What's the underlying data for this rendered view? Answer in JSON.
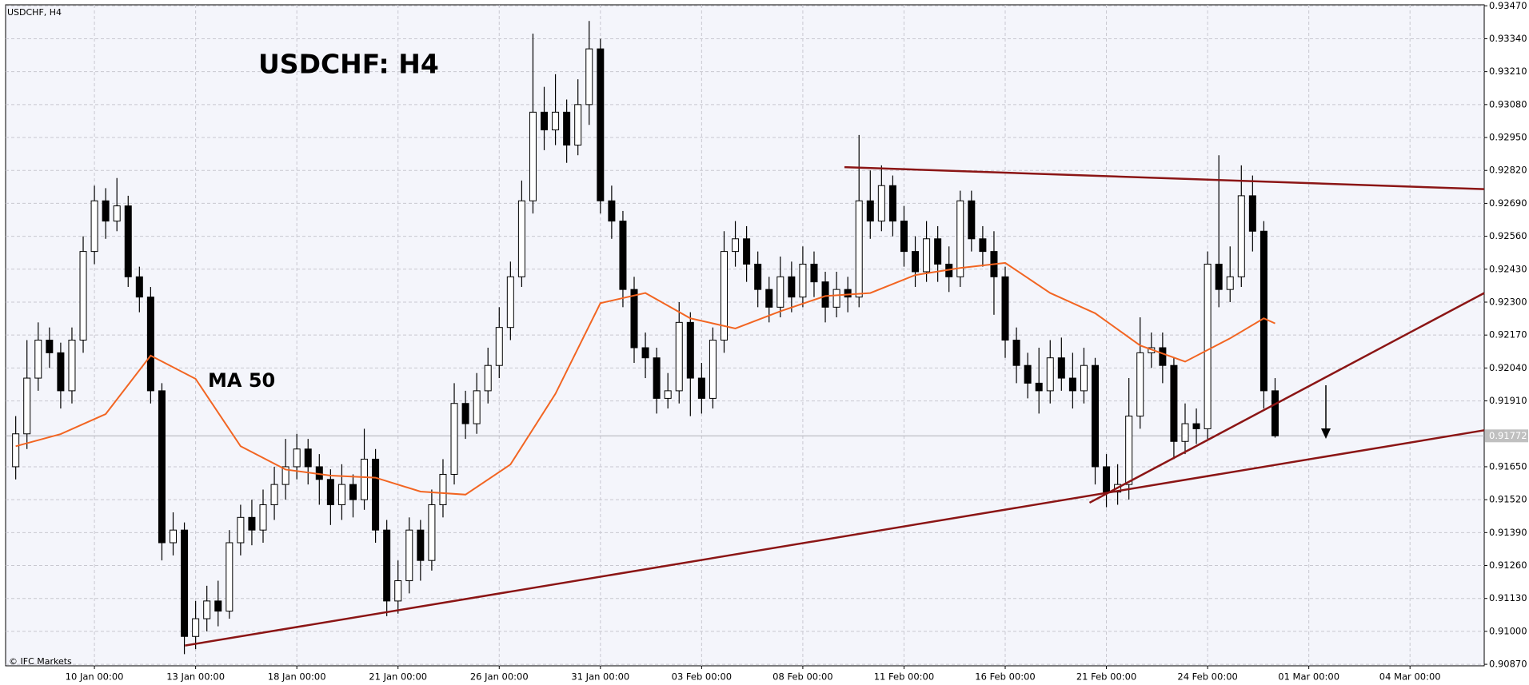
{
  "chart_data": {
    "type": "candlestick",
    "symbol_label": "USDCHF, H4",
    "title": "USDCHF: H4",
    "watermark": "© IFC Markets",
    "ylim": [
      0.90864,
      0.93474
    ],
    "yticks": [
      {
        "value": 0.9087,
        "label": "0.90870"
      },
      {
        "value": 0.91,
        "label": "0.91000"
      },
      {
        "value": 0.9113,
        "label": "0.91130"
      },
      {
        "value": 0.9126,
        "label": "0.91260"
      },
      {
        "value": 0.9139,
        "label": "0.91390"
      },
      {
        "value": 0.9152,
        "label": "0.91520"
      },
      {
        "value": 0.9165,
        "label": "0.91650"
      },
      {
        "value": 0.9191,
        "label": "0.91910"
      },
      {
        "value": 0.9204,
        "label": "0.92040"
      },
      {
        "value": 0.9217,
        "label": "0.92170"
      },
      {
        "value": 0.923,
        "label": "0.92300"
      },
      {
        "value": 0.9243,
        "label": "0.92430"
      },
      {
        "value": 0.9256,
        "label": "0.92560"
      },
      {
        "value": 0.9269,
        "label": "0.92690"
      },
      {
        "value": 0.9282,
        "label": "0.92820"
      },
      {
        "value": 0.9295,
        "label": "0.92950"
      },
      {
        "value": 0.9308,
        "label": "0.93080"
      },
      {
        "value": 0.9321,
        "label": "0.93210"
      },
      {
        "value": 0.9334,
        "label": "0.93340"
      },
      {
        "value": 0.9347,
        "label": "0.93470"
      }
    ],
    "xlim": [
      0.1,
      131.6
    ],
    "xticks": [
      {
        "value": 8,
        "label": "10 Jan 00:00"
      },
      {
        "value": 17,
        "label": "13 Jan 00:00"
      },
      {
        "value": 26,
        "label": "18 Jan 00:00"
      },
      {
        "value": 35,
        "label": "21 Jan 00:00"
      },
      {
        "value": 44,
        "label": "26 Jan 00:00"
      },
      {
        "value": 53,
        "label": "31 Jan 00:00"
      },
      {
        "value": 62,
        "label": "03 Feb 00:00"
      },
      {
        "value": 71,
        "label": "08 Feb 00:00"
      },
      {
        "value": 80,
        "label": "11 Feb 00:00"
      },
      {
        "value": 89,
        "label": "16 Feb 00:00"
      },
      {
        "value": 98,
        "label": "21 Feb 00:00"
      },
      {
        "value": 107,
        "label": "24 Feb 00:00"
      },
      {
        "value": 116,
        "label": "01 Mar 00:00"
      },
      {
        "value": 125,
        "label": "04 Mar 00:00"
      }
    ],
    "grid": true,
    "up_color": "#ffffff",
    "down_color": "#000000",
    "open": [
      0.9165,
      0.9178,
      0.92,
      0.9215,
      0.921,
      0.9195,
      0.9215,
      0.925,
      0.927,
      0.9262,
      0.9268,
      0.924,
      0.9232,
      0.9195,
      0.9135,
      0.914,
      0.9098,
      0.9105,
      0.9112,
      0.9108,
      0.9135,
      0.9145,
      0.914,
      0.915,
      0.9158,
      0.9165,
      0.9172,
      0.9165,
      0.916,
      0.915,
      0.9158,
      0.9152,
      0.9168,
      0.914,
      0.9112,
      0.912,
      0.914,
      0.9128,
      0.915,
      0.9162,
      0.919,
      0.9182,
      0.9195,
      0.9205,
      0.922,
      0.924,
      0.927,
      0.9305,
      0.9298,
      0.9305,
      0.9292,
      0.9308,
      0.933,
      0.927,
      0.9262,
      0.9235,
      0.9212,
      0.9208,
      0.9192,
      0.9195,
      0.9222,
      0.92,
      0.9192,
      0.9215,
      0.925,
      0.9255,
      0.9245,
      0.9235,
      0.9228,
      0.924,
      0.9232,
      0.9245,
      0.9238,
      0.9228,
      0.9235,
      0.9232,
      0.927,
      0.9262,
      0.9276,
      0.9262,
      0.925,
      0.9242,
      0.9255,
      0.9245,
      0.924,
      0.927,
      0.9255,
      0.925,
      0.924,
      0.9215,
      0.9205,
      0.9198,
      0.9195,
      0.9208,
      0.92,
      0.9195,
      0.9205,
      0.9165,
      0.9155,
      0.9158,
      0.9185,
      0.921,
      0.9212,
      0.9205,
      0.9175,
      0.9182,
      0.918,
      0.9245,
      0.9235,
      0.924,
      0.9272,
      0.9258,
      0.9195
    ],
    "high": [
      0.9185,
      0.9215,
      0.9222,
      0.922,
      0.9214,
      0.922,
      0.9256,
      0.9276,
      0.9275,
      0.9279,
      0.9272,
      0.9244,
      0.9236,
      0.9198,
      0.9147,
      0.9143,
      0.9112,
      0.9118,
      0.912,
      0.914,
      0.915,
      0.9152,
      0.9156,
      0.9165,
      0.9176,
      0.9178,
      0.9176,
      0.917,
      0.9164,
      0.9166,
      0.9162,
      0.918,
      0.9172,
      0.9144,
      0.9128,
      0.9145,
      0.9144,
      0.9156,
      0.9168,
      0.9198,
      0.9195,
      0.9202,
      0.9212,
      0.9228,
      0.9246,
      0.9278,
      0.9336,
      0.9315,
      0.932,
      0.931,
      0.9318,
      0.9341,
      0.9334,
      0.9276,
      0.9266,
      0.924,
      0.9218,
      0.9212,
      0.9202,
      0.923,
      0.9226,
      0.9206,
      0.922,
      0.9258,
      0.9262,
      0.926,
      0.925,
      0.924,
      0.9248,
      0.9246,
      0.9252,
      0.925,
      0.9242,
      0.9242,
      0.924,
      0.9296,
      0.9282,
      0.9284,
      0.928,
      0.9268,
      0.9256,
      0.9262,
      0.926,
      0.9252,
      0.9274,
      0.9274,
      0.926,
      0.9258,
      0.9244,
      0.922,
      0.921,
      0.9212,
      0.9215,
      0.9216,
      0.921,
      0.9212,
      0.9208,
      0.917,
      0.9166,
      0.92,
      0.9224,
      0.9218,
      0.9218,
      0.9208,
      0.919,
      0.9188,
      0.925,
      0.9288,
      0.9252,
      0.9284,
      0.928,
      0.9262,
      0.92
    ],
    "low": [
      0.916,
      0.9172,
      0.9195,
      0.9204,
      0.9188,
      0.919,
      0.921,
      0.9245,
      0.9255,
      0.9258,
      0.9236,
      0.9226,
      0.919,
      0.9128,
      0.913,
      0.9091,
      0.9093,
      0.91,
      0.9102,
      0.9105,
      0.913,
      0.9134,
      0.9135,
      0.9144,
      0.9152,
      0.916,
      0.9158,
      0.915,
      0.9142,
      0.9144,
      0.9145,
      0.9148,
      0.9135,
      0.9106,
      0.9107,
      0.9115,
      0.912,
      0.9124,
      0.9145,
      0.9158,
      0.9176,
      0.9178,
      0.919,
      0.92,
      0.9215,
      0.9236,
      0.9265,
      0.929,
      0.9292,
      0.9285,
      0.9288,
      0.93,
      0.9265,
      0.9255,
      0.9228,
      0.9206,
      0.92,
      0.9186,
      0.9188,
      0.919,
      0.9185,
      0.9186,
      0.9188,
      0.921,
      0.9244,
      0.9238,
      0.9228,
      0.9222,
      0.9224,
      0.9226,
      0.9228,
      0.9232,
      0.9222,
      0.9224,
      0.9226,
      0.9228,
      0.9255,
      0.9258,
      0.9256,
      0.9244,
      0.9236,
      0.9238,
      0.9238,
      0.9234,
      0.9236,
      0.925,
      0.9244,
      0.9225,
      0.9208,
      0.9198,
      0.9192,
      0.9186,
      0.919,
      0.9195,
      0.9188,
      0.919,
      0.9158,
      0.9149,
      0.915,
      0.9152,
      0.918,
      0.9204,
      0.9198,
      0.9168,
      0.917,
      0.9174,
      0.9176,
      0.9228,
      0.923,
      0.9236,
      0.925,
      0.9188,
      0.91765
    ],
    "close": [
      0.9178,
      0.92,
      0.9215,
      0.921,
      0.9195,
      0.9215,
      0.925,
      0.927,
      0.9262,
      0.9268,
      0.924,
      0.9232,
      0.9195,
      0.9135,
      0.914,
      0.9098,
      0.9105,
      0.9112,
      0.9108,
      0.9135,
      0.9145,
      0.914,
      0.915,
      0.9158,
      0.9165,
      0.9172,
      0.9165,
      0.916,
      0.915,
      0.9158,
      0.9152,
      0.9168,
      0.914,
      0.9112,
      0.912,
      0.914,
      0.9128,
      0.915,
      0.9162,
      0.919,
      0.9182,
      0.9195,
      0.9205,
      0.922,
      0.924,
      0.927,
      0.9305,
      0.9298,
      0.9305,
      0.9292,
      0.9308,
      0.933,
      0.927,
      0.9262,
      0.9235,
      0.9212,
      0.9208,
      0.9192,
      0.9195,
      0.9222,
      0.92,
      0.9192,
      0.9215,
      0.925,
      0.9255,
      0.9245,
      0.9235,
      0.9228,
      0.924,
      0.9232,
      0.9245,
      0.9238,
      0.9228,
      0.9235,
      0.9232,
      0.927,
      0.9262,
      0.9276,
      0.9262,
      0.925,
      0.9242,
      0.9255,
      0.9245,
      0.924,
      0.927,
      0.9255,
      0.925,
      0.924,
      0.9215,
      0.9205,
      0.9198,
      0.9195,
      0.9208,
      0.92,
      0.9195,
      0.9205,
      0.9165,
      0.9155,
      0.9158,
      0.9185,
      0.921,
      0.9212,
      0.9205,
      0.9175,
      0.9182,
      0.918,
      0.9245,
      0.9235,
      0.924,
      0.9272,
      0.9258,
      0.9195,
      0.91772
    ],
    "ma": {
      "name": "MA 50",
      "color": "#f26522",
      "x": [
        1,
        5,
        9,
        13,
        17,
        21,
        25,
        29,
        33,
        37,
        41,
        45,
        49,
        53,
        57,
        61,
        65,
        69,
        73,
        77,
        81,
        85,
        89,
        93,
        97,
        101,
        105,
        109,
        112,
        113
      ],
      "values": [
        0.91731,
        0.91779,
        0.91858,
        0.92089,
        0.91997,
        0.91731,
        0.91639,
        0.91615,
        0.91607,
        0.91552,
        0.9154,
        0.91659,
        0.91938,
        0.92296,
        0.92336,
        0.92236,
        0.92196,
        0.92264,
        0.92324,
        0.92336,
        0.92407,
        0.92435,
        0.92455,
        0.92336,
        0.92256,
        0.92129,
        0.92065,
        0.92157,
        0.92236,
        0.92216
      ]
    },
    "trendline_color": "#8b1515",
    "trendlines": [
      {
        "x": [
          16.06,
          131.6
        ],
        "y": [
          0.90944,
          0.91794
        ]
      },
      {
        "x": [
          74.7,
          131.6
        ],
        "y": [
          0.92833,
          0.92746
        ]
      },
      {
        "x": [
          96.5,
          131.6
        ],
        "y": [
          0.91508,
          0.92336
        ]
      }
    ]
  }
}
